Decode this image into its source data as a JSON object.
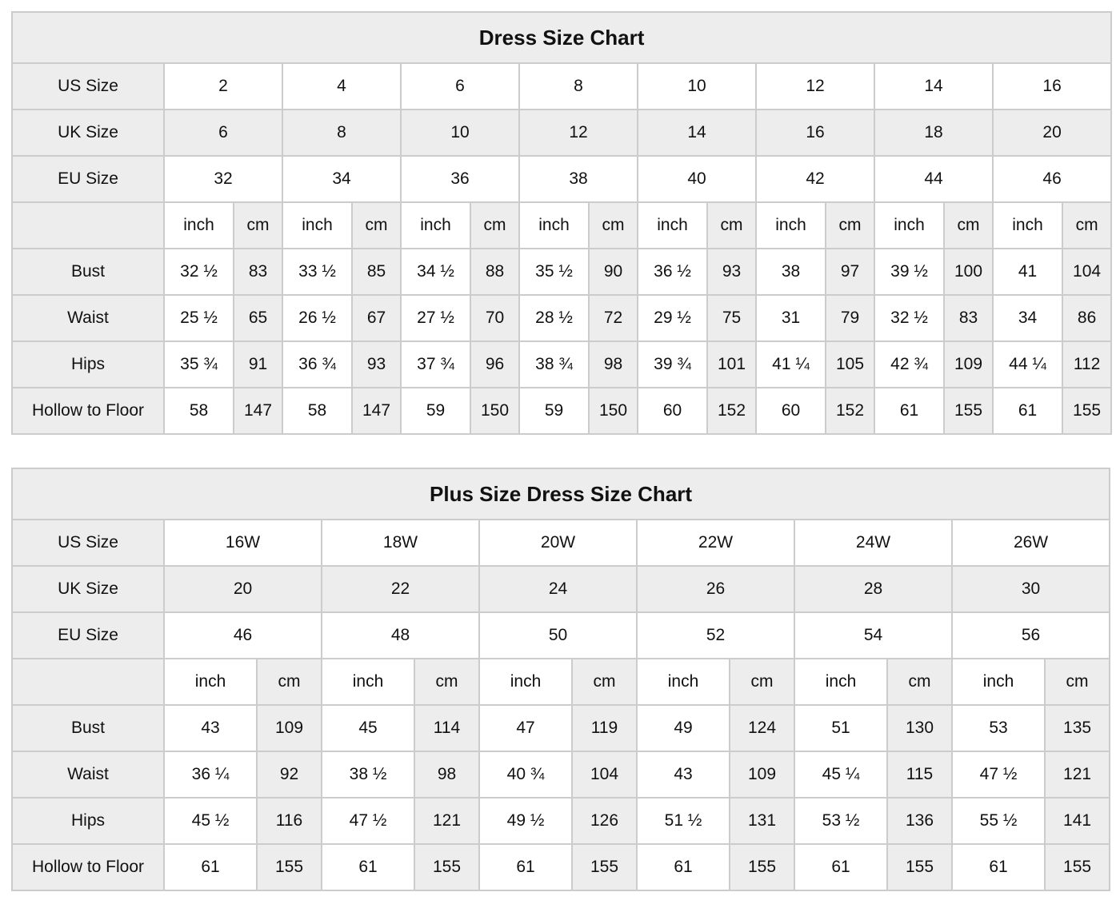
{
  "colors": {
    "shade_bg": "#ededed",
    "cell_bg": "#ffffff",
    "border": "#cccccc",
    "text": "#111111"
  },
  "chart_data": [
    {
      "type": "table",
      "title": "Dress Size Chart",
      "size_rows": [
        {
          "label": "US Size",
          "shaded": false,
          "values": [
            "2",
            "4",
            "6",
            "8",
            "10",
            "12",
            "14",
            "16"
          ]
        },
        {
          "label": "UK Size",
          "shaded": true,
          "values": [
            "6",
            "8",
            "10",
            "12",
            "14",
            "16",
            "18",
            "20"
          ]
        },
        {
          "label": "EU Size",
          "shaded": false,
          "values": [
            "32",
            "34",
            "36",
            "38",
            "40",
            "42",
            "44",
            "46"
          ]
        }
      ],
      "unit_headers": [
        "inch",
        "cm"
      ],
      "measure_rows": [
        {
          "label": "Bust",
          "pairs": [
            [
              "32 ½",
              "83"
            ],
            [
              "33 ½",
              "85"
            ],
            [
              "34 ½",
              "88"
            ],
            [
              "35 ½",
              "90"
            ],
            [
              "36 ½",
              "93"
            ],
            [
              "38",
              "97"
            ],
            [
              "39 ½",
              "100"
            ],
            [
              "41",
              "104"
            ]
          ]
        },
        {
          "label": "Waist",
          "pairs": [
            [
              "25 ½",
              "65"
            ],
            [
              "26 ½",
              "67"
            ],
            [
              "27 ½",
              "70"
            ],
            [
              "28 ½",
              "72"
            ],
            [
              "29 ½",
              "75"
            ],
            [
              "31",
              "79"
            ],
            [
              "32 ½",
              "83"
            ],
            [
              "34",
              "86"
            ]
          ]
        },
        {
          "label": "Hips",
          "pairs": [
            [
              "35 ¾",
              "91"
            ],
            [
              "36 ¾",
              "93"
            ],
            [
              "37 ¾",
              "96"
            ],
            [
              "38 ¾",
              "98"
            ],
            [
              "39 ¾",
              "101"
            ],
            [
              "41 ¼",
              "105"
            ],
            [
              "42 ¾",
              "109"
            ],
            [
              "44 ¼",
              "112"
            ]
          ]
        },
        {
          "label": "Hollow to Floor",
          "pairs": [
            [
              "58",
              "147"
            ],
            [
              "58",
              "147"
            ],
            [
              "59",
              "150"
            ],
            [
              "59",
              "150"
            ],
            [
              "60",
              "152"
            ],
            [
              "60",
              "152"
            ],
            [
              "61",
              "155"
            ],
            [
              "61",
              "155"
            ]
          ]
        }
      ]
    },
    {
      "type": "table",
      "title": "Plus Size Dress Size Chart",
      "size_rows": [
        {
          "label": "US Size",
          "shaded": false,
          "values": [
            "16W",
            "18W",
            "20W",
            "22W",
            "24W",
            "26W"
          ]
        },
        {
          "label": "UK Size",
          "shaded": true,
          "values": [
            "20",
            "22",
            "24",
            "26",
            "28",
            "30"
          ]
        },
        {
          "label": "EU Size",
          "shaded": false,
          "values": [
            "46",
            "48",
            "50",
            "52",
            "54",
            "56"
          ]
        }
      ],
      "unit_headers": [
        "inch",
        "cm"
      ],
      "measure_rows": [
        {
          "label": "Bust",
          "pairs": [
            [
              "43",
              "109"
            ],
            [
              "45",
              "114"
            ],
            [
              "47",
              "119"
            ],
            [
              "49",
              "124"
            ],
            [
              "51",
              "130"
            ],
            [
              "53",
              "135"
            ]
          ]
        },
        {
          "label": "Waist",
          "pairs": [
            [
              "36 ¼",
              "92"
            ],
            [
              "38 ½",
              "98"
            ],
            [
              "40 ¾",
              "104"
            ],
            [
              "43",
              "109"
            ],
            [
              "45 ¼",
              "115"
            ],
            [
              "47 ½",
              "121"
            ]
          ]
        },
        {
          "label": "Hips",
          "pairs": [
            [
              "45 ½",
              "116"
            ],
            [
              "47 ½",
              "121"
            ],
            [
              "49 ½",
              "126"
            ],
            [
              "51 ½",
              "131"
            ],
            [
              "53 ½",
              "136"
            ],
            [
              "55 ½",
              "141"
            ]
          ]
        },
        {
          "label": "Hollow to Floor",
          "pairs": [
            [
              "61",
              "155"
            ],
            [
              "61",
              "155"
            ],
            [
              "61",
              "155"
            ],
            [
              "61",
              "155"
            ],
            [
              "61",
              "155"
            ],
            [
              "61",
              "155"
            ]
          ]
        }
      ]
    }
  ]
}
